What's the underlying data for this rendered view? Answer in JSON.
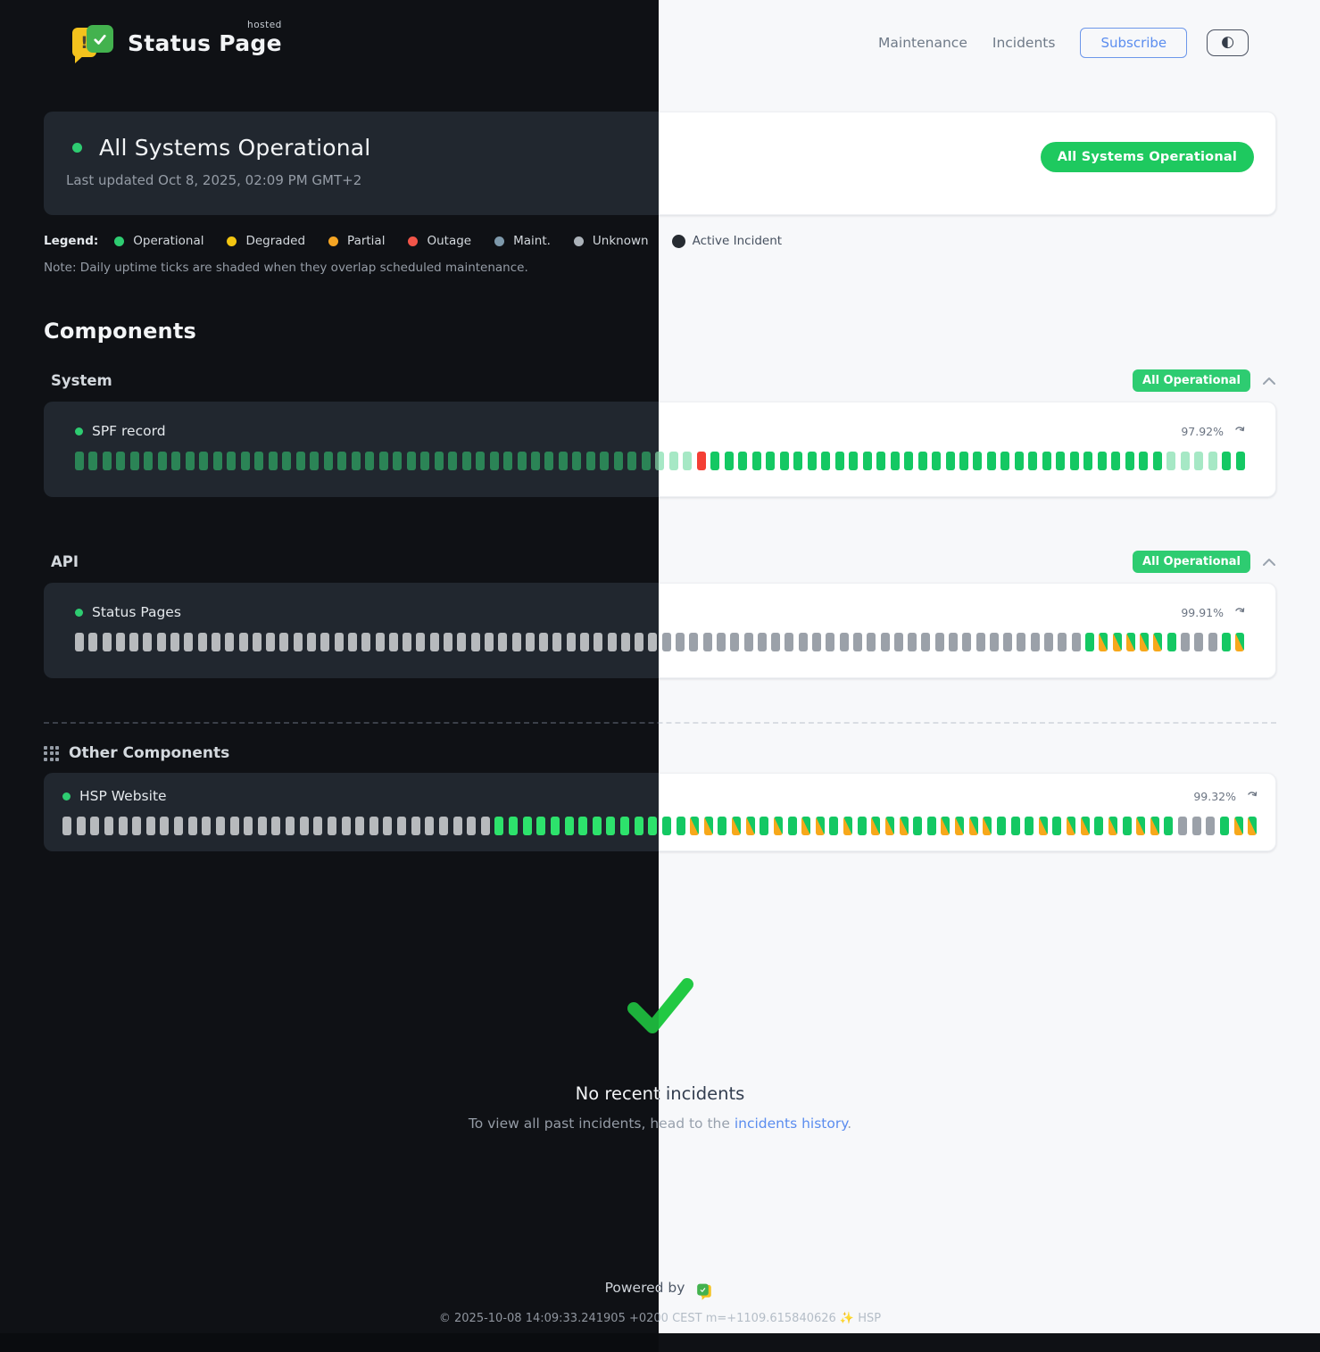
{
  "brand": {
    "title": "Status Page",
    "hosted": "hosted"
  },
  "nav": {
    "maintenance": "Maintenance",
    "incidents": "Incidents",
    "subscribe": "Subscribe"
  },
  "status": {
    "title": "All Systems Operational",
    "last_updated": "Last updated Oct 8, 2025, 02:09 PM GMT+2",
    "badge": "All Systems Operational"
  },
  "legend": {
    "label": "Legend:",
    "items": [
      {
        "label": "Operational",
        "color": "#2ecc71"
      },
      {
        "label": "Degraded",
        "color": "#f2c511"
      },
      {
        "label": "Partial",
        "color": "#f5a524"
      },
      {
        "label": "Outage",
        "color": "#f25549"
      },
      {
        "label": "Maint.",
        "color": "#7e99ab"
      },
      {
        "label": "Unknown",
        "color": "#abb2b9"
      },
      {
        "label": "Active Incident",
        "color": "#262b31",
        "big": true
      }
    ],
    "note": "Note: Daily uptime ticks are shaded when they overlap scheduled maintenance."
  },
  "components": {
    "heading": "Components",
    "groups": [
      {
        "name": "System",
        "badge": "All Operational",
        "items": [
          {
            "name": "SPF record",
            "uptime": "97.92%",
            "ticks": "gggggggggggggggggggggggggggggggggggggggggglllrGGGGGGGGGGGGGGGGGGGGGGGGGGGGGGGGGllllGG"
          }
        ]
      },
      {
        "name": "API",
        "badge": "All Operational",
        "items": [
          {
            "name": "Status Pages",
            "uptime": "99.91%",
            "ticks": "uuuuuuuuuuuuuuuuuuuuuuuuuuuuuuuuuuuuuuuuuuuuuuuuuuuuuuuuuuuuuuuuuuuuuuuuuuGmmmmmGuuuGm"
          }
        ]
      }
    ],
    "other": {
      "heading": "Other Components",
      "items": [
        {
          "name": "HSP Website",
          "uptime": "99.32%",
          "ticks": "uuuuuuuuuuuuuuuuuuuuuuuuuuuuuuuGGGGGGGGGGGGGGmmGmmGmGmmGmGmmmGGmmmmGGGmGmmGmGmmGuuuGmm"
        }
      ]
    }
  },
  "incidents_section": {
    "title": "No recent incidents",
    "subtitle_prefix": "To view all past incidents, head to the ",
    "link_text": "incidents history",
    "subtitle_suffix": "."
  },
  "footer": {
    "powered_by": "Powered by",
    "copyright": "© 2025-10-08 14:09:33.241905 +0200 CEST m=+1109.615840626 ✨ HSP"
  },
  "tick_legend_codes": {
    "g": "operational (dark-muted green)",
    "G": "operational (bright green)",
    "l": "operational partial-day (pale green)",
    "r": "outage (red)",
    "u": "unknown (gray)",
    "m": "operational shaded by scheduled maintenance (green/orange diagonal)"
  },
  "colors": {
    "badge_green": "#1ec95f",
    "group_badge_green": "#2ecc71",
    "tick_operational": "#14c863",
    "tick_outage": "#f43f35",
    "tick_maintenance_orange": "#f7a81b",
    "tick_unknown": "#9ba1a9",
    "link_blue": "#5b8def",
    "check_green": "#21c943",
    "logo_yellow": "#f4c21d",
    "logo_green": "#43b24e"
  }
}
